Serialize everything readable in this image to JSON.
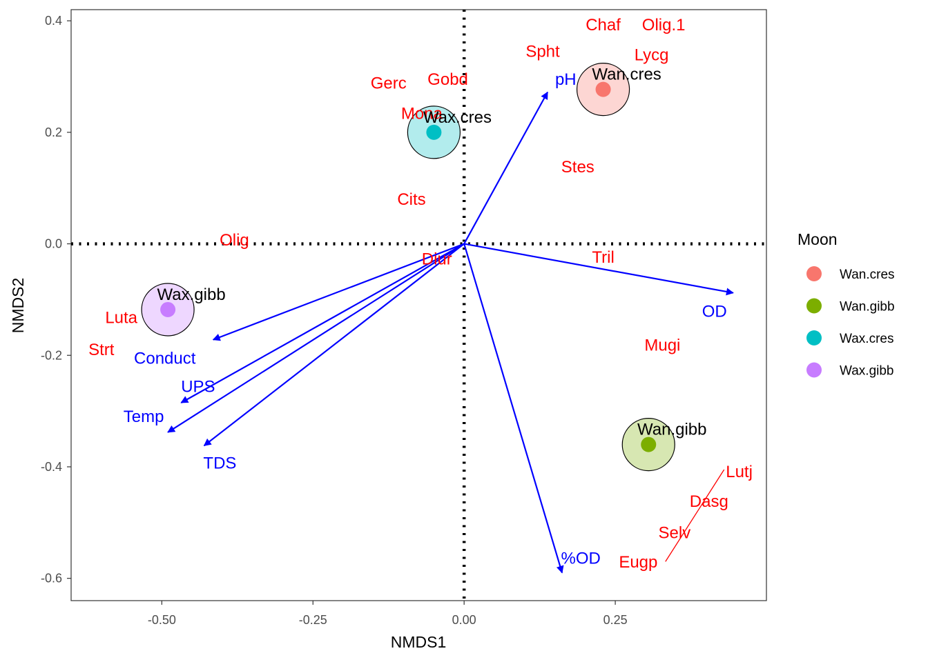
{
  "chart_data": {
    "type": "scatter",
    "title": "",
    "xlabel": "NMDS1",
    "ylabel": "NMDS2",
    "xlim": [
      -0.65,
      0.5
    ],
    "ylim": [
      -0.64,
      0.42
    ],
    "x_ticks": [
      -0.5,
      -0.25,
      0.0,
      0.25
    ],
    "x_tick_labels": [
      "-0.50",
      "-0.25",
      "0.00",
      "0.25"
    ],
    "y_ticks": [
      -0.6,
      -0.4,
      -0.2,
      0.0,
      0.2,
      0.4
    ],
    "y_tick_labels": [
      "-0.6",
      "-0.4",
      "-0.2",
      "0.0",
      "0.2",
      "0.4"
    ],
    "grid": false,
    "reference_lines": {
      "x": 0,
      "y": 0,
      "style": "dotted"
    },
    "legend": {
      "title": "Moon",
      "position": "right",
      "entries": [
        {
          "label": "Wan.cres",
          "color": "#F8766D"
        },
        {
          "label": "Wan.gibb",
          "color": "#7CAE00"
        },
        {
          "label": "Wax.cres",
          "color": "#00BFC4"
        },
        {
          "label": "Wax.gibb",
          "color": "#C77CFF"
        }
      ]
    },
    "groups": [
      {
        "name": "Wan.cres",
        "x": 0.23,
        "y": 0.277,
        "color": "#F8766D",
        "label": "Wan.cres"
      },
      {
        "name": "Wax.cres",
        "x": -0.05,
        "y": 0.2,
        "color": "#00BFC4",
        "label": "Wax.cres"
      },
      {
        "name": "Wax.gibb",
        "x": -0.49,
        "y": -0.118,
        "color": "#C77CFF",
        "label": "Wax.gibb"
      },
      {
        "name": "Wan.gibb",
        "x": 0.305,
        "y": -0.36,
        "color": "#7CAE00",
        "label": "Wan.gibb"
      }
    ],
    "species": [
      {
        "label": "Chaf",
        "x": 0.23,
        "y": 0.393
      },
      {
        "label": "Olig.1",
        "x": 0.33,
        "y": 0.393
      },
      {
        "label": "Lycg",
        "x": 0.31,
        "y": 0.339
      },
      {
        "label": "Spht",
        "x": 0.13,
        "y": 0.345
      },
      {
        "label": "Gerc",
        "x": -0.125,
        "y": 0.288
      },
      {
        "label": "Gobd",
        "x": -0.027,
        "y": 0.295
      },
      {
        "label": "Mona",
        "x": -0.07,
        "y": 0.234
      },
      {
        "label": "Stes",
        "x": 0.188,
        "y": 0.138
      },
      {
        "label": "Cits",
        "x": -0.087,
        "y": 0.08
      },
      {
        "label": "Olig",
        "x": -0.38,
        "y": 0.007
      },
      {
        "label": "Diur",
        "x": -0.045,
        "y": -0.027
      },
      {
        "label": "Tril",
        "x": 0.23,
        "y": -0.024
      },
      {
        "label": "Luta",
        "x": -0.567,
        "y": -0.132
      },
      {
        "label": "Strt",
        "x": -0.6,
        "y": -0.19
      },
      {
        "label": "Mugi",
        "x": 0.328,
        "y": -0.182
      },
      {
        "label": "Lutj",
        "x": 0.455,
        "y": -0.409
      },
      {
        "label": "Dasg",
        "x": 0.405,
        "y": -0.462
      },
      {
        "label": "Selv",
        "x": 0.348,
        "y": -0.518
      },
      {
        "label": "Eugp",
        "x": 0.288,
        "y": -0.571
      }
    ],
    "species_segment": {
      "x1": 0.43,
      "y1": -0.405,
      "x2": 0.333,
      "y2": -0.57
    },
    "vectors": [
      {
        "label": "pH",
        "x": 0.138,
        "y": 0.272,
        "label_x": 0.168,
        "label_y": 0.295
      },
      {
        "label": "OD",
        "x": 0.445,
        "y": -0.088,
        "label_x": 0.414,
        "label_y": -0.121
      },
      {
        "label": "%OD",
        "x": 0.162,
        "y": -0.59,
        "label_x": 0.193,
        "label_y": -0.564
      },
      {
        "label": "Conduct",
        "x": -0.415,
        "y": -0.172,
        "label_x": -0.495,
        "label_y": -0.205
      },
      {
        "label": "UPS",
        "x": -0.468,
        "y": -0.285,
        "label_x": -0.44,
        "label_y": -0.256
      },
      {
        "label": "Temp",
        "x": -0.49,
        "y": -0.338,
        "label_x": -0.53,
        "label_y": -0.31
      },
      {
        "label": "TDS",
        "x": -0.43,
        "y": -0.362,
        "label_x": -0.404,
        "label_y": -0.393
      }
    ]
  }
}
